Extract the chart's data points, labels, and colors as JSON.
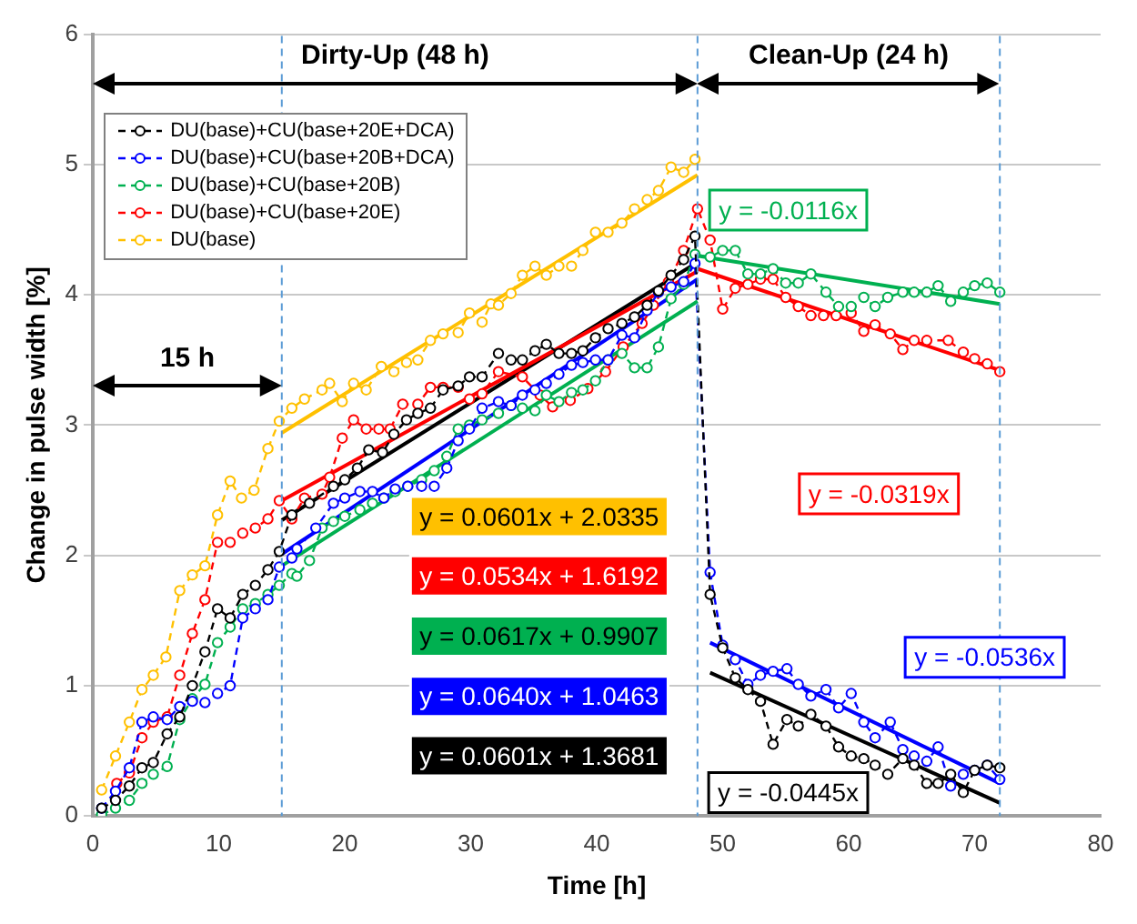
{
  "chart_data": {
    "type": "line",
    "xlabel": "Time [h]",
    "ylabel": "Change in pulse width [%]",
    "xlim": [
      0,
      80
    ],
    "xticks": [
      0,
      10,
      20,
      30,
      40,
      50,
      60,
      70,
      80
    ],
    "ylim": [
      0,
      6
    ],
    "yticks": [
      0,
      1,
      2,
      3,
      4,
      5,
      6
    ],
    "grid": "y",
    "legend": "top left",
    "series": [
      {
        "name": "DU(base)+CU(base+20E+DCA)",
        "color": "#000000",
        "marker": "circle",
        "line_style": "dashed",
        "x": [
          0.7,
          1.8,
          2.9,
          3.9,
          4.8,
          5.9,
          6.9,
          7.9,
          8.9,
          9.9,
          10.9,
          11.9,
          12.9,
          13.9,
          14.8,
          15.8,
          17.2,
          19.1,
          20,
          21,
          21.9,
          23,
          23.9,
          24.9,
          25.8,
          26.8,
          27.8,
          29,
          29.9,
          30.9,
          32.2,
          33.2,
          34.1,
          35.1,
          36,
          37,
          38,
          38.9,
          39.9,
          40.9,
          42,
          43,
          44,
          44.9,
          45.9,
          46.9,
          47.8,
          49,
          50,
          51,
          52,
          53,
          54,
          55.1,
          56,
          57,
          58.2,
          59.2,
          60.2,
          61.2,
          62.1,
          63.1,
          64.3,
          65.2,
          66.2,
          67.1,
          68.1,
          69.1,
          70,
          71,
          72
        ],
        "values": [
          0.06,
          0.12,
          0.23,
          0.37,
          0.41,
          0.63,
          0.76,
          1.0,
          1.26,
          1.59,
          1.52,
          1.7,
          1.77,
          1.89,
          2.03,
          2.31,
          2.4,
          2.53,
          2.58,
          2.67,
          2.81,
          2.79,
          2.93,
          3.04,
          3.09,
          3.13,
          3.27,
          3.3,
          3.37,
          3.37,
          3.55,
          3.5,
          3.5,
          3.57,
          3.62,
          3.55,
          3.55,
          3.57,
          3.67,
          3.74,
          3.78,
          3.83,
          3.92,
          4.03,
          4.15,
          4.27,
          4.45,
          1.7,
          1.29,
          1.06,
          0.97,
          0.88,
          0.55,
          0.74,
          0.69,
          0.78,
          0.69,
          0.53,
          0.46,
          0.44,
          0.39,
          0.32,
          0.44,
          0.39,
          0.25,
          0.25,
          0.32,
          0.18,
          0.35,
          0.39,
          0.37
        ]
      },
      {
        "name": "DU(base)+CU(base+20B+DCA)",
        "color": "#0000ff",
        "marker": "circle",
        "line_style": "dashed",
        "x": [
          0.7,
          1.8,
          2.9,
          3.9,
          4.8,
          5.9,
          6.9,
          7.9,
          8.9,
          9.9,
          10.9,
          11.9,
          12.9,
          13.9,
          14.8,
          15.8,
          16.2,
          17.7,
          19.1,
          20,
          21.2,
          22.2,
          23.1,
          24,
          25,
          26.1,
          27.1,
          28.1,
          29,
          29.9,
          30.9,
          32.2,
          33.2,
          34.1,
          35.1,
          36,
          37,
          38,
          38.9,
          39.9,
          40.9,
          42,
          43,
          44,
          44.9,
          45.9,
          46.9,
          47.8,
          49,
          50,
          51,
          52,
          53,
          54,
          55.1,
          56,
          57,
          58.2,
          59.2,
          60.2,
          61.2,
          62.1,
          63.3,
          64.3,
          65.2,
          66.2,
          67.1,
          68.1,
          69.1,
          70,
          71,
          72
        ],
        "values": [
          0.06,
          0.19,
          0.37,
          0.72,
          0.76,
          0.74,
          0.84,
          0.88,
          0.87,
          0.94,
          1.0,
          1.52,
          1.59,
          1.66,
          1.91,
          1.98,
          2.05,
          2.21,
          2.4,
          2.44,
          2.49,
          2.49,
          2.44,
          2.51,
          2.53,
          2.53,
          2.53,
          2.67,
          2.88,
          2.97,
          3.13,
          3.18,
          3.15,
          3.23,
          3.27,
          3.32,
          3.39,
          3.46,
          3.48,
          3.5,
          3.5,
          3.69,
          3.67,
          3.88,
          4.02,
          4.06,
          4.1,
          4.24,
          1.87,
          1.31,
          1.2,
          1.01,
          1.08,
          1.11,
          1.13,
          1.01,
          0.92,
          0.97,
          0.83,
          0.94,
          0.72,
          0.6,
          0.72,
          0.51,
          0.46,
          0.42,
          0.53,
          0.23,
          0.32,
          0.35,
          0.39,
          0.28
        ]
      },
      {
        "name": "DU(base)+CU(base+20B)",
        "color": "#00b050",
        "marker": "circle",
        "line_style": "dashed",
        "x": [
          0.7,
          1.8,
          2.9,
          3.9,
          4.8,
          5.9,
          6.9,
          7.9,
          8.9,
          9.9,
          10.9,
          11.9,
          12.9,
          13.9,
          14.8,
          15.8,
          16.2,
          17.2,
          18.2,
          19.1,
          20,
          21.2,
          22.2,
          23.1,
          24,
          25,
          26.1,
          27.1,
          28.1,
          29,
          29.9,
          30.9,
          32.2,
          33.2,
          34.1,
          35.1,
          36,
          37,
          38,
          38.9,
          39.9,
          40.9,
          42,
          43,
          44,
          44.9,
          45.9,
          46.9,
          47.8,
          49,
          50,
          51,
          52,
          53,
          54,
          55,
          56,
          57,
          58.2,
          59.2,
          60.2,
          61.2,
          62.1,
          63.1,
          64.3,
          65.2,
          66.2,
          67.1,
          68.1,
          69.1,
          70,
          71,
          72
        ],
        "values": [
          0.01,
          0.06,
          0.12,
          0.25,
          0.32,
          0.38,
          0.74,
          0.9,
          1.01,
          1.33,
          1.45,
          1.59,
          1.63,
          1.7,
          1.77,
          1.86,
          1.84,
          1.96,
          2.21,
          2.26,
          2.3,
          2.35,
          2.4,
          2.44,
          2.49,
          2.53,
          2.58,
          2.65,
          2.76,
          2.97,
          3.0,
          3.04,
          3.09,
          3.15,
          3.13,
          3.11,
          3.23,
          3.18,
          3.25,
          3.27,
          3.34,
          3.5,
          3.55,
          3.44,
          3.44,
          3.6,
          3.97,
          4.08,
          4.31,
          4.29,
          4.34,
          4.34,
          4.16,
          4.16,
          4.2,
          4.09,
          4.09,
          4.16,
          4.02,
          3.91,
          3.91,
          3.98,
          3.91,
          3.98,
          4.02,
          4.02,
          4.02,
          4.07,
          3.95,
          4.02,
          4.07,
          4.09,
          4.02
        ]
      },
      {
        "name": "DU(base)+CU(base+20E)",
        "color": "#ff0000",
        "marker": "circle",
        "line_style": "dashed",
        "x": [
          1.9,
          2.9,
          3.9,
          4.8,
          5.9,
          6.9,
          7.9,
          8.9,
          9.9,
          10.9,
          11.9,
          12.9,
          13.9,
          14.8,
          15.8,
          16.8,
          18.2,
          18.8,
          19.8,
          20.7,
          21.7,
          22.7,
          23.6,
          24.6,
          25.8,
          26.8,
          27.8,
          29,
          29.9,
          30.9,
          32.2,
          34.1,
          35.5,
          36.5,
          37.9,
          39.3,
          40.7,
          42.1,
          43.6,
          44.5,
          45.7,
          46.9,
          48,
          49,
          50,
          51,
          52,
          53,
          54,
          55,
          56,
          57,
          58,
          59,
          60.2,
          61.2,
          62.1,
          63.3,
          64.3,
          65.2,
          66.2,
          67.9,
          69.1,
          70,
          71,
          72
        ],
        "values": [
          0.25,
          0.33,
          0.6,
          0.72,
          0.76,
          1.08,
          1.4,
          1.66,
          2.1,
          2.1,
          2.17,
          2.21,
          2.28,
          2.42,
          2.28,
          2.44,
          2.47,
          2.6,
          2.9,
          3.04,
          2.97,
          2.97,
          2.97,
          3.16,
          3.16,
          3.29,
          3.29,
          3.29,
          3.2,
          3.24,
          3.41,
          3.37,
          3.23,
          3.14,
          3.19,
          3.28,
          3.41,
          3.6,
          3.78,
          3.92,
          4.1,
          4.34,
          4.66,
          4.42,
          3.89,
          4.05,
          4.08,
          4.12,
          4.12,
          3.98,
          3.91,
          3.84,
          3.84,
          3.84,
          3.86,
          3.72,
          3.77,
          3.7,
          3.58,
          3.65,
          3.65,
          3.65,
          3.56,
          3.51,
          3.47,
          3.41
        ]
      },
      {
        "name": "DU(base)",
        "color": "#ffc000",
        "marker": "circle",
        "line_style": "dashed",
        "x": [
          0.7,
          1.8,
          2.9,
          3.9,
          4.8,
          5.8,
          6.9,
          7.9,
          8.9,
          9.9,
          10.9,
          11.8,
          12.8,
          13.9,
          14.8,
          15.8,
          16.8,
          18.2,
          18.8,
          19.8,
          20.7,
          21.7,
          22.9,
          23.9,
          24.9,
          25.8,
          26.8,
          27.8,
          29,
          29.9,
          30.9,
          31.6,
          32.2,
          33.2,
          34.1,
          35.1,
          36,
          37,
          38,
          38.9,
          39.9,
          40.9,
          42,
          43,
          44,
          44.9,
          45.9,
          46.9,
          47.8
        ],
        "values": [
          0.2,
          0.46,
          0.72,
          0.97,
          1.08,
          1.22,
          1.73,
          1.85,
          1.92,
          2.31,
          2.57,
          2.44,
          2.5,
          2.82,
          3.03,
          3.13,
          3.2,
          3.27,
          3.32,
          3.18,
          3.32,
          3.27,
          3.45,
          3.41,
          3.48,
          3.5,
          3.65,
          3.7,
          3.71,
          3.86,
          3.79,
          3.93,
          3.92,
          4.01,
          4.15,
          4.22,
          4.15,
          4.22,
          4.22,
          4.34,
          4.48,
          4.48,
          4.55,
          4.66,
          4.73,
          4.8,
          4.98,
          4.94,
          5.04
        ]
      },
      {
        "color": "#ffc000",
        "line_style": "solid",
        "x": [
          15,
          48
        ],
        "values": [
          2.94,
          4.92
        ]
      },
      {
        "color": "#ff0000",
        "line_style": "solid",
        "x": [
          15,
          48
        ],
        "values": [
          2.42,
          4.18
        ]
      },
      {
        "color": "#00b050",
        "line_style": "solid",
        "x": [
          15,
          48
        ],
        "values": [
          1.92,
          3.95
        ]
      },
      {
        "color": "#0000ff",
        "line_style": "solid",
        "x": [
          15,
          48
        ],
        "values": [
          2.01,
          4.12
        ]
      },
      {
        "color": "#000000",
        "line_style": "solid",
        "x": [
          15,
          48
        ],
        "values": [
          2.27,
          4.25
        ]
      },
      {
        "color": "#00b050",
        "line_style": "solid",
        "x": [
          48,
          72
        ],
        "values": [
          4.3,
          3.93
        ]
      },
      {
        "color": "#ff0000",
        "line_style": "solid",
        "x": [
          48,
          72
        ],
        "values": [
          4.2,
          3.42
        ]
      },
      {
        "color": "#0000ff",
        "line_style": "solid",
        "x": [
          49,
          72
        ],
        "values": [
          1.33,
          0.25
        ]
      },
      {
        "color": "#000000",
        "line_style": "solid",
        "x": [
          49,
          72
        ],
        "values": [
          1.1,
          0.1
        ]
      }
    ],
    "ref_lines": [
      {
        "axis": "x",
        "value": 15,
        "color": "#5b9bd5",
        "line_style": "dashed"
      },
      {
        "axis": "x",
        "value": 48,
        "color": "#5b9bd5",
        "line_style": "dashed"
      },
      {
        "axis": "x",
        "value": 72,
        "color": "#5b9bd5",
        "line_style": "dashed"
      }
    ],
    "annotations": [
      "Dirty-Up (48 h)",
      "Clean-Up (24 h)",
      "15 h",
      "y = 0.0601x + 2.0335",
      "y = 0.0534x + 1.6192",
      "y = 0.0617x + 0.9907",
      "y = 0.0640x + 1.0463",
      "y = 0.0601x + 1.3681",
      "y = -0.0116x",
      "y = -0.0319x",
      "y = -0.0536x",
      "y = -0.0445x"
    ]
  }
}
